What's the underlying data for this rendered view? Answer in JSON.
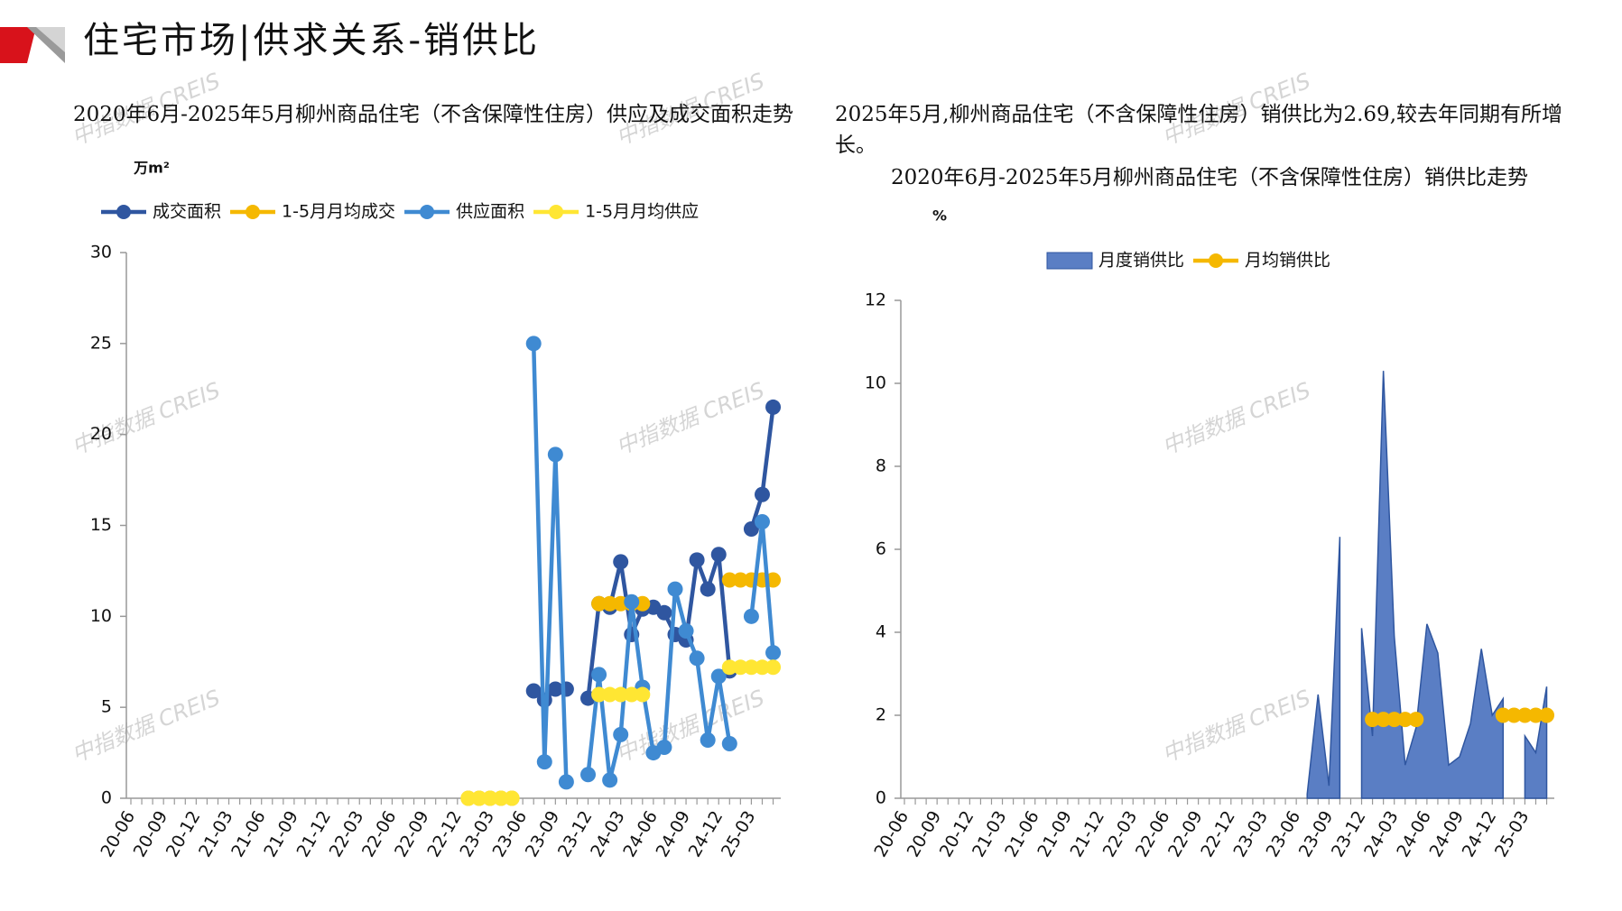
{
  "header": {
    "title": "住宅市场|供求关系-销供比"
  },
  "watermark": "中指数据 CREIS",
  "chart_data": [
    {
      "type": "line",
      "title": "2020年6月-2025年5月柳州商品住宅（不含保障性住房）供应及成交面积走势",
      "y_label": "万m²",
      "legend": "top",
      "categories": [
        "20-06",
        null,
        null,
        "20-09",
        null,
        null,
        "20-12",
        null,
        null,
        "21-03",
        null,
        null,
        "21-06",
        null,
        null,
        "21-09",
        null,
        null,
        "21-12",
        null,
        null,
        "22-03",
        null,
        null,
        "22-06",
        null,
        null,
        "22-09",
        null,
        null,
        "22-12",
        null,
        null,
        "23-03",
        null,
        null,
        "23-06",
        null,
        null,
        "23-09",
        null,
        null,
        "23-12",
        null,
        null,
        "24-03",
        null,
        null,
        "24-06",
        null,
        null,
        "24-09",
        null,
        null,
        "24-12",
        null,
        null,
        "25-03",
        null,
        null
      ],
      "ylim": [
        0,
        30
      ],
      "yticks": [
        0,
        5,
        10,
        15,
        20,
        25,
        30
      ],
      "series": [
        {
          "name": "成交面积",
          "type": "line",
          "color": "#2f56a0",
          "values": [
            null,
            null,
            null,
            null,
            null,
            null,
            null,
            null,
            null,
            null,
            null,
            null,
            null,
            null,
            null,
            null,
            null,
            null,
            null,
            null,
            null,
            null,
            null,
            null,
            null,
            null,
            null,
            null,
            null,
            null,
            null,
            null,
            null,
            null,
            null,
            null,
            null,
            5.9,
            5.4,
            6.0,
            6.0,
            null,
            5.5,
            10.7,
            10.5,
            13.0,
            9.0,
            10.4,
            10.5,
            10.2,
            9.0,
            8.7,
            13.1,
            11.5,
            13.4,
            7.0,
            null,
            14.8,
            16.7,
            21.5
          ]
        },
        {
          "name": "1-5月月均成交",
          "type": "line",
          "color": "#f5b800",
          "values": [
            null,
            null,
            null,
            null,
            null,
            null,
            null,
            null,
            null,
            null,
            null,
            null,
            null,
            null,
            null,
            null,
            null,
            null,
            null,
            null,
            null,
            null,
            null,
            null,
            null,
            null,
            null,
            null,
            null,
            null,
            null,
            0,
            0,
            0,
            0,
            0,
            null,
            null,
            null,
            null,
            null,
            null,
            null,
            10.7,
            10.7,
            10.7,
            10.7,
            10.7,
            null,
            null,
            null,
            null,
            null,
            null,
            null,
            12.0,
            12.0,
            12.0,
            12.0,
            12.0
          ]
        },
        {
          "name": "供应面积",
          "type": "line",
          "color": "#3f8ad2",
          "values": [
            null,
            null,
            null,
            null,
            null,
            null,
            null,
            null,
            null,
            null,
            null,
            null,
            null,
            null,
            null,
            null,
            null,
            null,
            null,
            null,
            null,
            null,
            null,
            null,
            null,
            null,
            null,
            null,
            null,
            null,
            null,
            null,
            null,
            null,
            null,
            null,
            null,
            25,
            2.0,
            18.9,
            0.9,
            null,
            1.3,
            6.8,
            1.0,
            3.5,
            10.8,
            6.1,
            2.5,
            2.8,
            11.5,
            9.2,
            7.7,
            3.2,
            6.7,
            3.0,
            null,
            10.0,
            15.2,
            8.0
          ]
        },
        {
          "name": "1-5月月均供应",
          "type": "line",
          "color": "#ffe633",
          "values": [
            null,
            null,
            null,
            null,
            null,
            null,
            null,
            null,
            null,
            null,
            null,
            null,
            null,
            null,
            null,
            null,
            null,
            null,
            null,
            null,
            null,
            null,
            null,
            null,
            null,
            null,
            null,
            null,
            null,
            null,
            null,
            0,
            0,
            0,
            0,
            0,
            null,
            null,
            null,
            null,
            null,
            null,
            null,
            5.7,
            5.7,
            5.7,
            5.7,
            5.7,
            null,
            null,
            null,
            null,
            null,
            null,
            null,
            7.2,
            7.2,
            7.2,
            7.2,
            7.2
          ]
        }
      ]
    },
    {
      "type": "area",
      "annotation": "2025年5月,柳州商品住宅（不含保障性住房）销供比为2.69,较去年同期有所增长。",
      "title": "2020年6月-2025年5月柳州商品住宅（不含保障性住房）销供比走势",
      "y_label": "%",
      "legend": "top",
      "categories": [
        "20-06",
        null,
        null,
        "20-09",
        null,
        null,
        "20-12",
        null,
        null,
        "21-03",
        null,
        null,
        "21-06",
        null,
        null,
        "21-09",
        null,
        null,
        "21-12",
        null,
        null,
        "22-03",
        null,
        null,
        "22-06",
        null,
        null,
        "22-09",
        null,
        null,
        "22-12",
        null,
        null,
        "23-03",
        null,
        null,
        "23-06",
        null,
        null,
        "23-09",
        null,
        null,
        "23-12",
        null,
        null,
        "24-03",
        null,
        null,
        "24-06",
        null,
        null,
        "24-09",
        null,
        null,
        "24-12",
        null,
        null,
        "25-03",
        null,
        null
      ],
      "ylim": [
        0,
        12
      ],
      "yticks": [
        0,
        2,
        4,
        6,
        8,
        10,
        12
      ],
      "series": [
        {
          "name": "月度销供比",
          "type": "area",
          "color": "#5a7ec4",
          "values": [
            null,
            null,
            null,
            null,
            null,
            null,
            null,
            null,
            null,
            null,
            null,
            null,
            null,
            null,
            null,
            null,
            null,
            null,
            null,
            null,
            null,
            null,
            null,
            null,
            null,
            null,
            null,
            null,
            null,
            null,
            null,
            null,
            null,
            null,
            null,
            null,
            null,
            0.1,
            2.5,
            0.3,
            6.3,
            null,
            4.1,
            1.5,
            10.3,
            3.9,
            0.8,
            1.7,
            4.2,
            3.5,
            0.8,
            1.0,
            1.8,
            3.6,
            2.0,
            2.4,
            null,
            1.5,
            1.1,
            2.69
          ]
        },
        {
          "name": "月均销供比",
          "type": "line",
          "color": "#f5b800",
          "values": [
            null,
            null,
            null,
            null,
            null,
            null,
            null,
            null,
            null,
            null,
            null,
            null,
            null,
            null,
            null,
            null,
            null,
            null,
            null,
            null,
            null,
            null,
            null,
            null,
            null,
            null,
            null,
            null,
            null,
            null,
            null,
            null,
            null,
            null,
            null,
            null,
            null,
            null,
            null,
            null,
            null,
            null,
            null,
            1.9,
            1.9,
            1.9,
            1.9,
            1.9,
            null,
            null,
            null,
            null,
            null,
            null,
            null,
            2.0,
            2.0,
            2.0,
            2.0,
            2.0
          ]
        }
      ]
    }
  ]
}
